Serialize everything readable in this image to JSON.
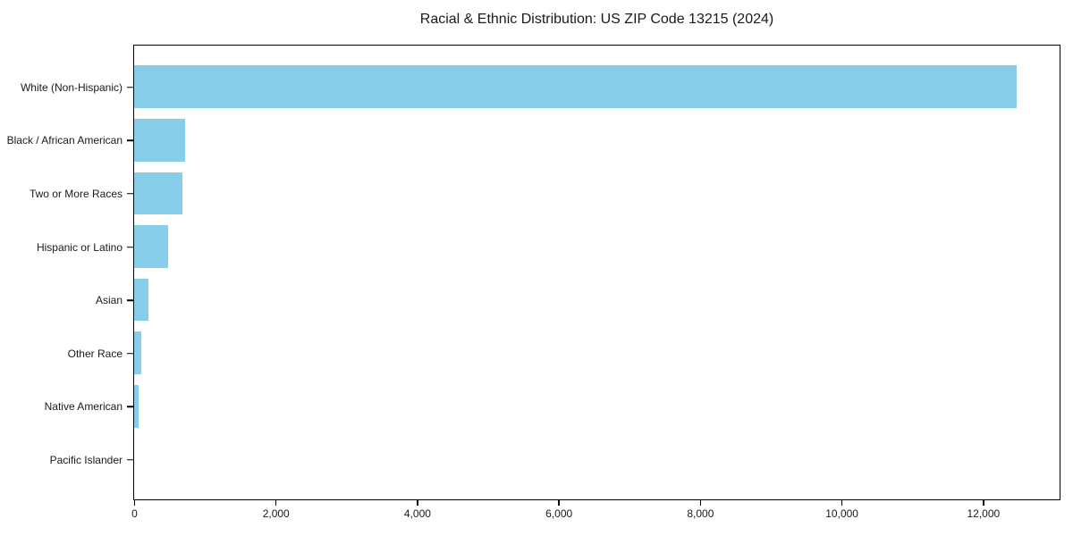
{
  "chart_data": {
    "type": "bar",
    "orientation": "horizontal",
    "title": "Racial & Ethnic Distribution: US ZIP Code 13215 (2024)",
    "xlabel": "",
    "ylabel": "",
    "categories": [
      "White (Non-Hispanic)",
      "Black / African American",
      "Two or More Races",
      "Hispanic or Latino",
      "Asian",
      "Other Race",
      "Native American",
      "Pacific Islander"
    ],
    "values": [
      12480,
      720,
      680,
      475,
      200,
      95,
      68,
      0
    ],
    "x_ticks": [
      0,
      2000,
      4000,
      6000,
      8000,
      10000,
      12000
    ],
    "x_tick_labels": [
      "0",
      "2,000",
      "4,000",
      "6,000",
      "8,000",
      "10,000",
      "12,000"
    ],
    "xlim": [
      0,
      13070
    ],
    "grid": false,
    "legend": null,
    "bar_color": "#87CEEB",
    "axis_color": "#000000",
    "background_color": "#ffffff"
  }
}
